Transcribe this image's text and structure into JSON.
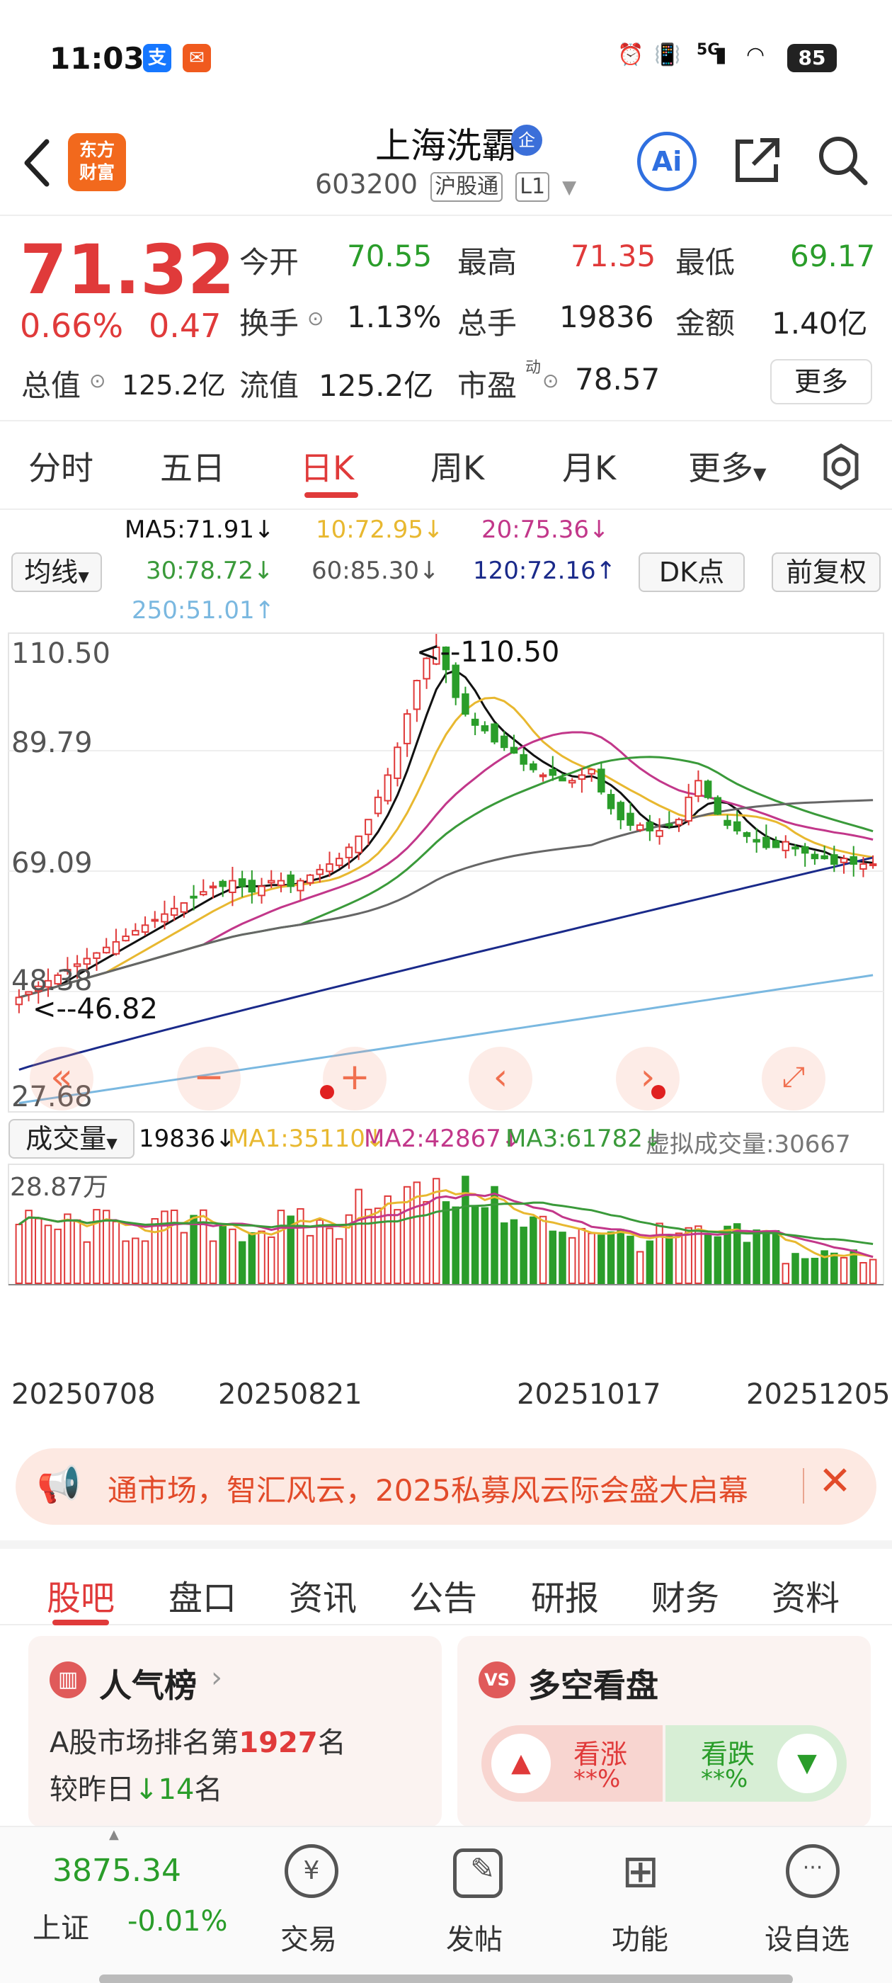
{
  "status_bar": {
    "time": "11:03",
    "app_icons": [
      "alipay-icon",
      "message-app-icon"
    ],
    "network": "5G",
    "battery": "85"
  },
  "header": {
    "stock_name": "上海洗霸",
    "badge": "企",
    "code": "603200",
    "tag_connect": "沪股通",
    "tag_level": "L1",
    "logo_line1": "东方",
    "logo_line2": "财富",
    "ai_label": "Ai"
  },
  "quote": {
    "price": "71.32",
    "change_pct": "0.66%",
    "change": "0.47",
    "open_label": "今开",
    "open": "70.55",
    "high_label": "最高",
    "high": "71.35",
    "low_label": "最低",
    "low": "69.17",
    "turnover_label": "换手",
    "turnover": "1.13%",
    "volume_label": "总手",
    "volume": "19836",
    "amount_label": "金额",
    "amount": "1.40亿",
    "mktcap_label": "总值",
    "mktcap": "125.2亿",
    "float_label": "流值",
    "float": "125.2亿",
    "pe_label": "市盈",
    "pe_sup": "动",
    "pe": "78.57",
    "more": "更多"
  },
  "period_tabs": [
    "分时",
    "五日",
    "日K",
    "周K",
    "月K",
    "更多"
  ],
  "period_active": 2,
  "ma_legend": {
    "ma5": "MA5:71.91↓",
    "ma10": "10:72.95↓",
    "ma20": "20:75.36↓",
    "ma30": "30:78.72↓",
    "ma60": "60:85.30↓",
    "ma120": "120:72.16↑",
    "ma250": "250:51.01↑",
    "line_btn": "均线",
    "dk_btn": "DK点",
    "fq_btn": "前复权"
  },
  "colors": {
    "up": "#e03a3a",
    "down": "#2a9d2a",
    "ma5": "#111111",
    "ma10": "#e8b830",
    "ma20": "#c2378a",
    "ma30": "#3a9a3a",
    "ma60": "#666666",
    "ma120": "#1a2a8a",
    "ma250": "#7ab8e0"
  },
  "price_axis": [
    "110.50",
    "89.79",
    "69.09",
    "48.38",
    "27.68"
  ],
  "price_annotations": {
    "max": "<--110.50",
    "min": "<--46.82"
  },
  "volume_legend": {
    "select": "成交量",
    "vol": "19836↓",
    "ma1": "MA1:35110↓",
    "ma2": "MA2:42867↓",
    "ma3": "MA3:61782↓",
    "virtual": "虚拟成交量:30667",
    "axis_top": "28.87万"
  },
  "dates": [
    "20250708",
    "20250821",
    "20251017",
    "20251205"
  ],
  "chart_data": {
    "type": "candlestick",
    "ylim": [
      27.68,
      110.5
    ],
    "date_ticks": [
      "20250708",
      "20250821",
      "20251017",
      "20251205"
    ],
    "close_approx": [
      47,
      48,
      49,
      50,
      51,
      52,
      53,
      54,
      55,
      56,
      57,
      58,
      59,
      60,
      61,
      62,
      63,
      64,
      65,
      66,
      67,
      67,
      68,
      67,
      66,
      67,
      68,
      68,
      67,
      68,
      69,
      70,
      71,
      72,
      74,
      76,
      79,
      83,
      87,
      92,
      98,
      104,
      108,
      110,
      106,
      101,
      98,
      96,
      95,
      93,
      92,
      91,
      89,
      88,
      87,
      87,
      86,
      86,
      87,
      88,
      84,
      81,
      79,
      78,
      78,
      77,
      77,
      78,
      79,
      83,
      86,
      83,
      80,
      78,
      77,
      76,
      75,
      74,
      74,
      75,
      74,
      73,
      72,
      72,
      71,
      72,
      71,
      71,
      71
    ],
    "volume_max": "28.87万"
  },
  "banner": {
    "text": "通市场，智汇风云，2025私募风云际会盛大启幕"
  },
  "section_tabs": [
    "股吧",
    "盘口",
    "资讯",
    "公告",
    "研报",
    "财务",
    "资料"
  ],
  "section_active": 0,
  "cards": {
    "popular_title": "人气榜",
    "popular_rank_prefix": "A股市场排名第",
    "popular_rank": "1927",
    "popular_rank_suffix": "名",
    "popular_change_prefix": "较昨日",
    "popular_change": "14",
    "popular_change_suffix": "名",
    "bull_bear_title": "多空看盘",
    "bull_label": "看涨",
    "bull_value": "**%",
    "bear_label": "看跌",
    "bear_value": "**%"
  },
  "bottom_nav": {
    "index_value": "3875.34",
    "index_name": "上证",
    "index_change": "-0.01%",
    "items": [
      "交易",
      "发帖",
      "功能",
      "设自选"
    ]
  }
}
